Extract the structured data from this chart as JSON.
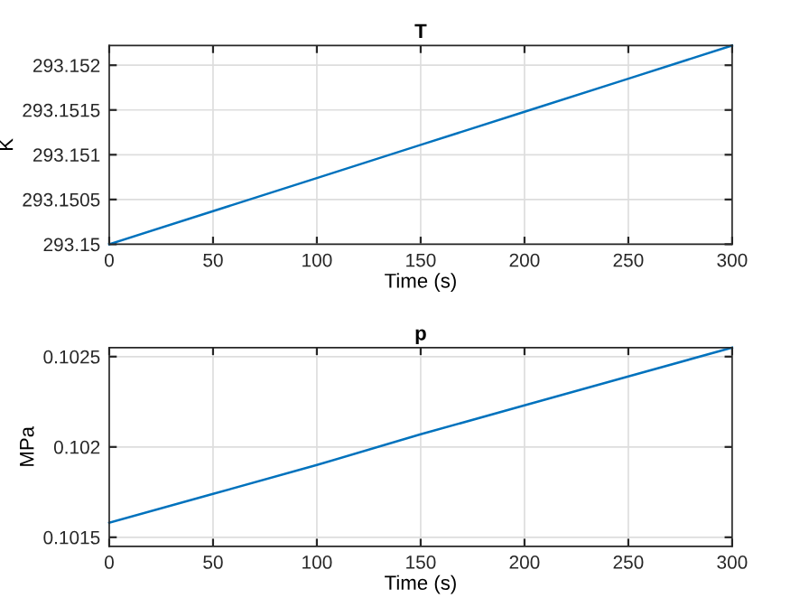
{
  "chart_data": [
    {
      "type": "line",
      "title": "T",
      "xlabel": "Time (s)",
      "ylabel": "K",
      "series": [
        {
          "color": "#0072bd",
          "x": [
            0,
            50,
            100,
            150,
            200,
            250,
            300
          ],
          "values": [
            293.15,
            293.15037,
            293.15074,
            293.15111,
            293.15148,
            293.15185,
            293.15222
          ]
        }
      ],
      "xlim": [
        0,
        300
      ],
      "xticks": [
        0,
        50,
        100,
        150,
        200,
        250,
        300
      ],
      "ylim": [
        293.15,
        293.15222
      ],
      "yticks": [
        293.15,
        293.1505,
        293.151,
        293.1515,
        293.152
      ],
      "grid": true
    },
    {
      "type": "line",
      "title": "p",
      "xlabel": "Time (s)",
      "ylabel": "MPa",
      "series": [
        {
          "color": "#0072bd",
          "x": [
            0,
            50,
            100,
            150,
            200,
            250,
            300
          ],
          "values": [
            0.10158,
            0.10174,
            0.1019,
            0.10207,
            0.10223,
            0.10239,
            0.10255
          ]
        }
      ],
      "xlim": [
        0,
        300
      ],
      "xticks": [
        0,
        50,
        100,
        150,
        200,
        250,
        300
      ],
      "ylim": [
        0.10145,
        0.10255
      ],
      "yticks": [
        0.1015,
        0.102,
        0.1025
      ],
      "grid": true
    }
  ]
}
